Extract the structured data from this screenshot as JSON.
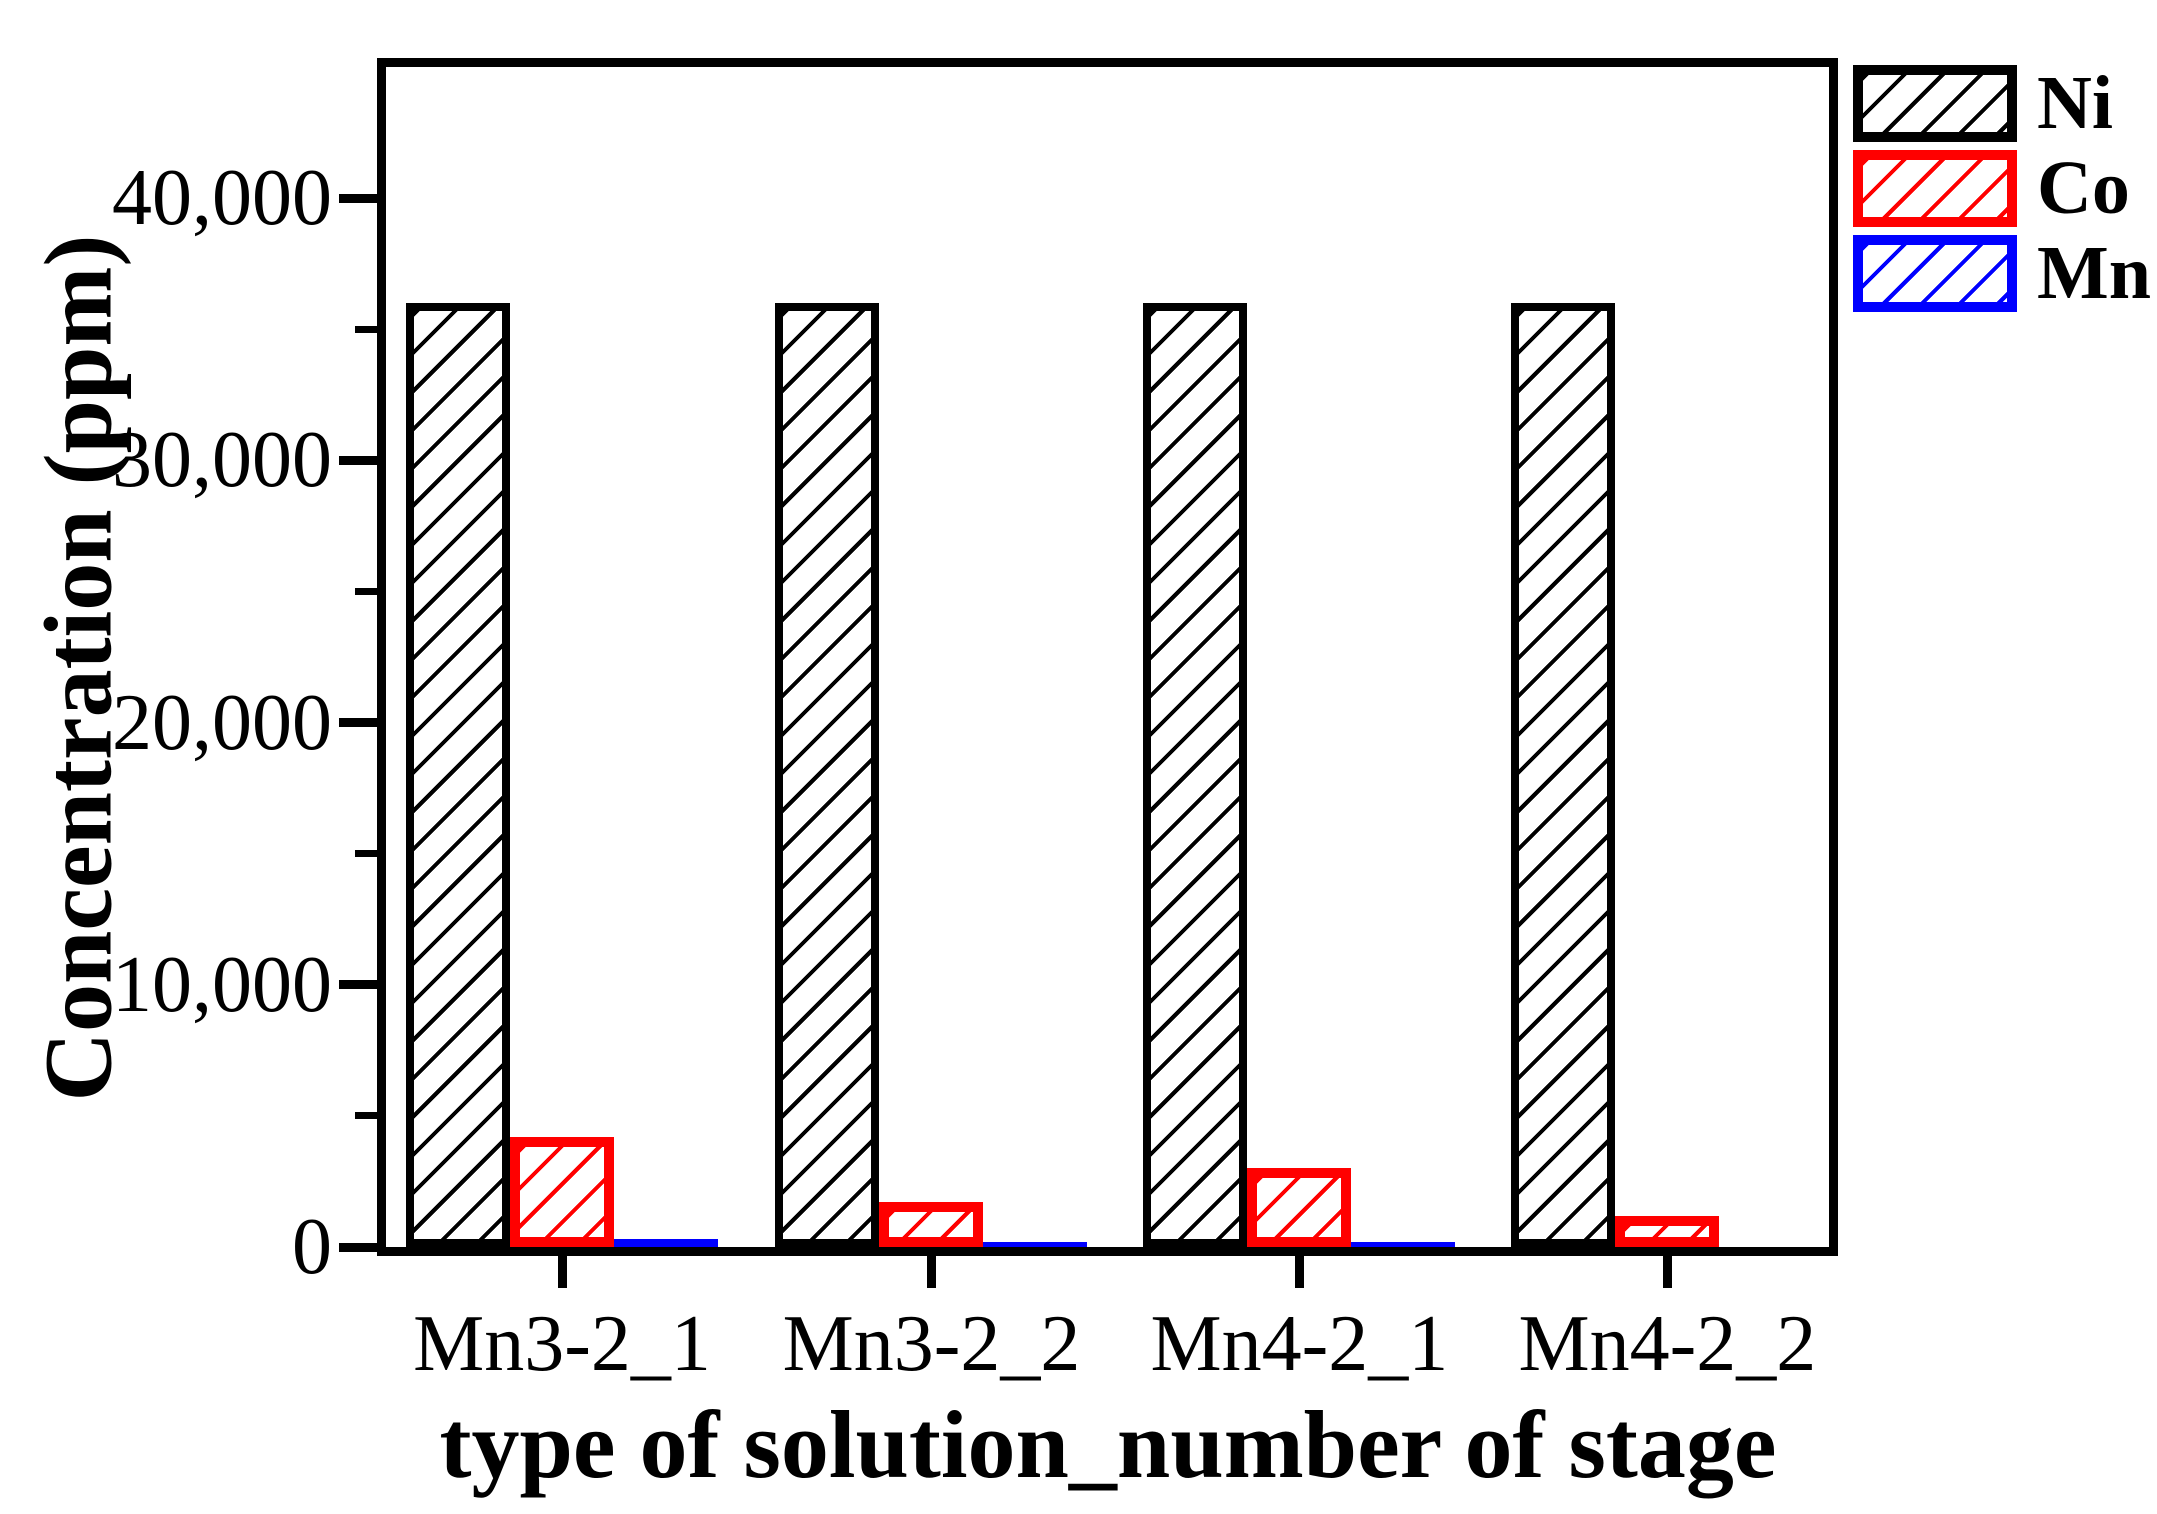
{
  "chart_data": {
    "type": "bar",
    "title": "",
    "xlabel": "type of solution_number of stage",
    "ylabel": "Concentration (ppm)",
    "categories": [
      "Mn3-2_1",
      "Mn3-2_2",
      "Mn4-2_1",
      "Mn4-2_2"
    ],
    "series": [
      {
        "name": "Ni",
        "color": "#000000",
        "values": [
          36000,
          36000,
          36000,
          36000
        ]
      },
      {
        "name": "Co",
        "color": "#ff0000",
        "values": [
          4200,
          1700,
          3000,
          1200
        ]
      },
      {
        "name": "Mn",
        "color": "#0000ff",
        "values": [
          300,
          100,
          100,
          0
        ]
      }
    ],
    "ylim": [
      0,
      45000
    ],
    "y_major_ticks": [
      0,
      10000,
      20000,
      30000,
      40000
    ],
    "y_tick_labels": [
      "0",
      "10,000",
      "20,000",
      "30,000",
      "40,000"
    ],
    "y_minor_ticks": [
      5000,
      15000,
      25000,
      35000
    ],
    "grid": "off",
    "legend_position": "top-right-outside",
    "bar_style": "diagonal-hatch"
  }
}
